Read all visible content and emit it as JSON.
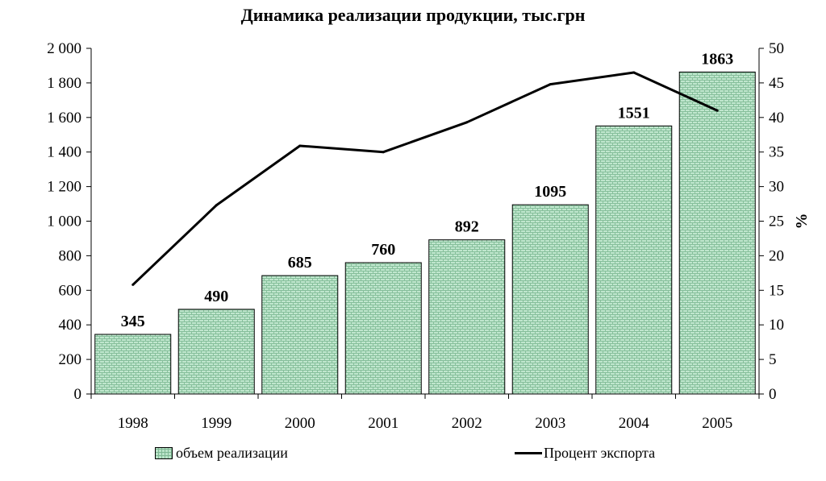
{
  "chart_data": {
    "type": "bar",
    "title": "Динамика реализации продукции, тыс.грн",
    "categories": [
      "1998",
      "1999",
      "2000",
      "2001",
      "2002",
      "2003",
      "2004",
      "2005"
    ],
    "series": [
      {
        "name": "объем реализации",
        "type": "bar",
        "axis": "left",
        "values": [
          345,
          490,
          685,
          760,
          892,
          1095,
          1551,
          1863
        ],
        "color": "#b9e3c8"
      },
      {
        "name": "Процент экспорта",
        "type": "line",
        "axis": "right",
        "values": [
          15.8,
          27.3,
          35.9,
          35.0,
          39.3,
          44.8,
          46.5,
          41.0
        ],
        "color": "#000000"
      }
    ],
    "y_left": {
      "ylim": [
        0,
        2000
      ],
      "ticks": [
        0,
        200,
        400,
        600,
        800,
        1000,
        1200,
        1400,
        1600,
        1800,
        2000
      ],
      "tick_labels": [
        "0",
        "200",
        "400",
        "600",
        "800",
        "1 000",
        "1 200",
        "1 400",
        "1 600",
        "1 800",
        "2 000"
      ]
    },
    "y_right": {
      "ylabel": "%",
      "ylim": [
        0,
        50
      ],
      "ticks": [
        0,
        5,
        10,
        15,
        20,
        25,
        30,
        35,
        40,
        45,
        50
      ]
    },
    "data_labels": [
      "345",
      "490",
      "685",
      "760",
      "892",
      "1095",
      "1551",
      "1863"
    ],
    "grid": false,
    "legend_position": "bottom"
  }
}
